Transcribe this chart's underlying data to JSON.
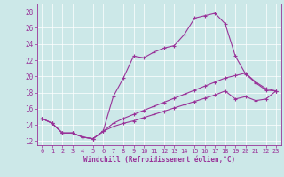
{
  "xlabel": "Windchill (Refroidissement éolien,°C)",
  "bg_color": "#cce8e8",
  "line_color": "#993399",
  "xlim": [
    -0.5,
    23.5
  ],
  "ylim": [
    11.5,
    29.0
  ],
  "yticks": [
    12,
    14,
    16,
    18,
    20,
    22,
    24,
    26,
    28
  ],
  "xticks": [
    0,
    1,
    2,
    3,
    4,
    5,
    6,
    7,
    8,
    9,
    10,
    11,
    12,
    13,
    14,
    15,
    16,
    17,
    18,
    19,
    20,
    21,
    22,
    23
  ],
  "line1_x": [
    0,
    1,
    2,
    3,
    4,
    5,
    6,
    7,
    8,
    9,
    10,
    11,
    12,
    13,
    14,
    15,
    16,
    17,
    18,
    19,
    20,
    21,
    22,
    23
  ],
  "line1_y": [
    14.8,
    14.2,
    13.0,
    13.0,
    12.5,
    12.3,
    13.2,
    17.5,
    19.8,
    22.5,
    22.3,
    23.0,
    23.5,
    23.8,
    25.2,
    27.2,
    27.5,
    27.8,
    26.5,
    22.5,
    20.3,
    19.2,
    18.3,
    18.2
  ],
  "line2_x": [
    0,
    1,
    2,
    3,
    4,
    5,
    6,
    7,
    8,
    9,
    10,
    11,
    12,
    13,
    14,
    15,
    16,
    17,
    18,
    19,
    20,
    21,
    22,
    23
  ],
  "line2_y": [
    14.8,
    14.2,
    13.0,
    13.0,
    12.5,
    12.3,
    13.2,
    14.2,
    14.8,
    15.3,
    15.8,
    16.3,
    16.8,
    17.3,
    17.8,
    18.3,
    18.8,
    19.3,
    19.8,
    20.1,
    20.4,
    19.3,
    18.5,
    18.2
  ],
  "line3_x": [
    0,
    1,
    2,
    3,
    4,
    5,
    6,
    7,
    8,
    9,
    10,
    11,
    12,
    13,
    14,
    15,
    16,
    17,
    18,
    19,
    20,
    21,
    22,
    23
  ],
  "line3_y": [
    14.8,
    14.2,
    13.0,
    13.0,
    12.5,
    12.3,
    13.2,
    13.8,
    14.2,
    14.5,
    14.9,
    15.3,
    15.7,
    16.1,
    16.5,
    16.9,
    17.3,
    17.7,
    18.2,
    17.2,
    17.5,
    17.0,
    17.2,
    18.2
  ]
}
